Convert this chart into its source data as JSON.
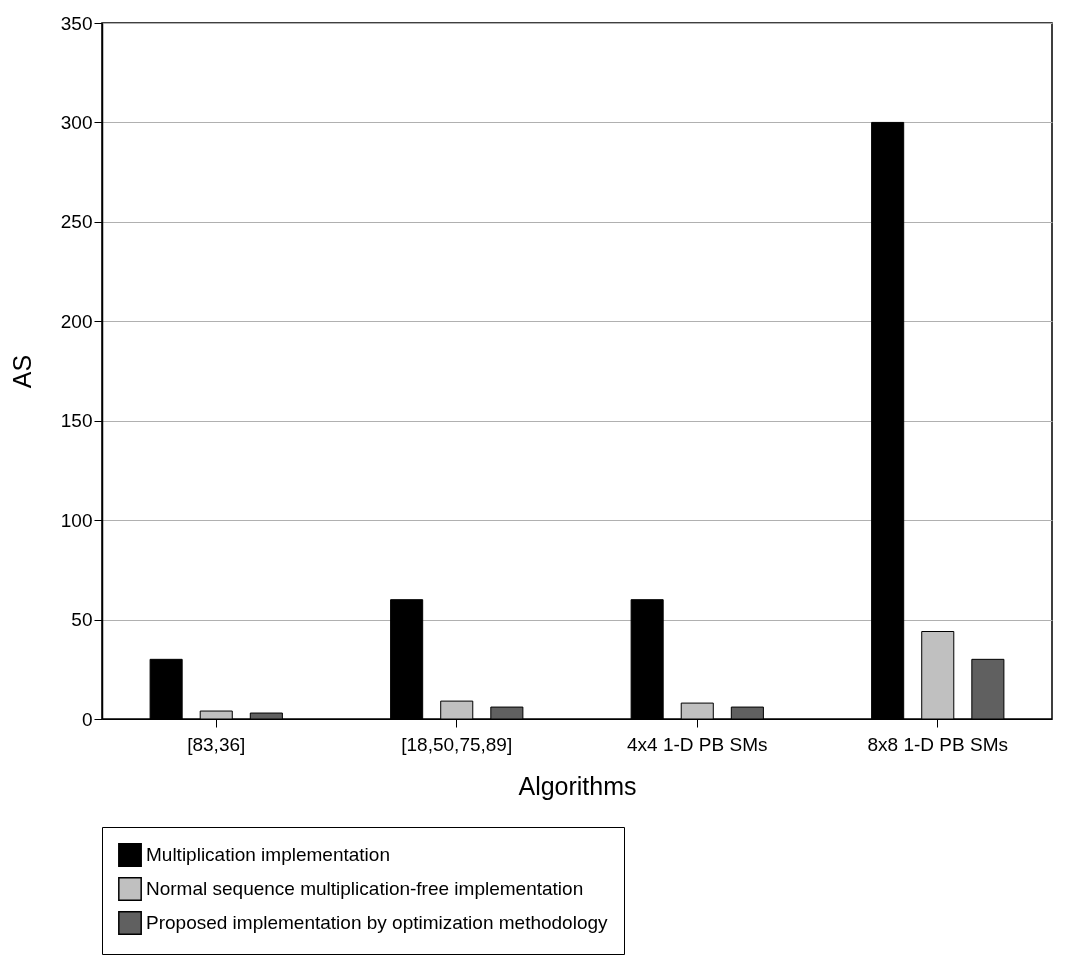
{
  "chart_data": {
    "type": "bar",
    "xlabel": "Algorithms",
    "ylabel": "AS",
    "categories": [
      "[83,36]",
      "[18,50,75,89]",
      "4x4 1-D PB SMs",
      "8x8 1-D PB SMs"
    ],
    "series": [
      {
        "name": "Multiplication implementation",
        "color": "#000000",
        "values": [
          30,
          60,
          60,
          300
        ]
      },
      {
        "name": "Normal sequence multiplication-free implementation",
        "color": "#c0c0c0",
        "values": [
          4,
          9,
          8,
          44
        ]
      },
      {
        "name": "Proposed implementation by optimization methodology",
        "color": "#606060",
        "values": [
          3,
          6,
          6,
          30
        ]
      }
    ],
    "ylim": [
      0,
      350
    ],
    "yticks": [
      0,
      50,
      100,
      150,
      200,
      250,
      300,
      350
    ],
    "grid": "y",
    "legend": "bottom"
  }
}
